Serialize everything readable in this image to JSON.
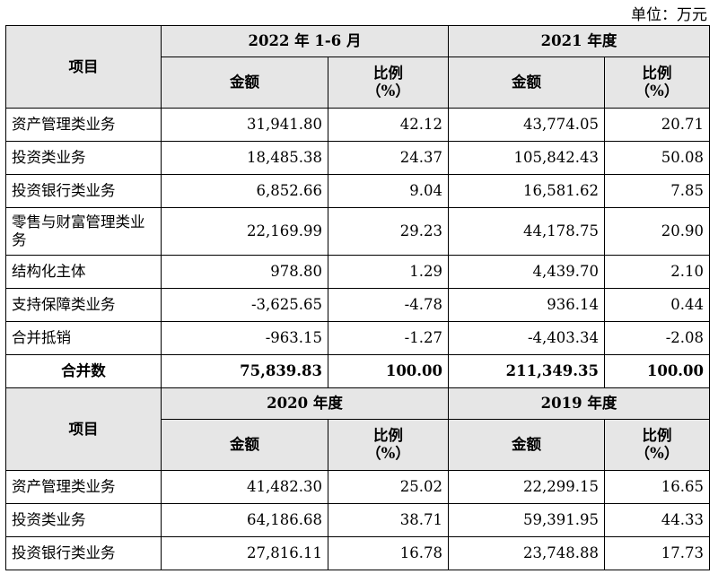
{
  "unit_label": "单位：万元",
  "tables": [
    {
      "item_header": "项目",
      "period1": "2022 年 1-6 月",
      "period2": "2021 年度",
      "amount_label": "金额",
      "ratio_label": "比例",
      "ratio_unit": "（%）",
      "rows": [
        {
          "item": "资产管理类业务",
          "a1": "31,941.80",
          "r1": "42.12",
          "a2": "43,774.05",
          "r2": "20.71"
        },
        {
          "item": "投资类业务",
          "a1": "18,485.38",
          "r1": "24.37",
          "a2": "105,842.43",
          "r2": "50.08"
        },
        {
          "item": "投资银行类业务",
          "a1": "6,852.66",
          "r1": "9.04",
          "a2": "16,581.62",
          "r2": "7.85"
        },
        {
          "item": "零售与财富管理类业务",
          "a1": "22,169.99",
          "r1": "29.23",
          "a2": "44,178.75",
          "r2": "20.90"
        },
        {
          "item": "结构化主体",
          "a1": "978.80",
          "r1": "1.29",
          "a2": "4,439.70",
          "r2": "2.10"
        },
        {
          "item": "支持保障类业务",
          "a1": "-3,625.65",
          "r1": "-4.78",
          "a2": "936.14",
          "r2": "0.44"
        },
        {
          "item": "合并抵销",
          "a1": "-963.15",
          "r1": "-1.27",
          "a2": "-4,403.34",
          "r2": "-2.08"
        },
        {
          "item": "合并数",
          "a1": "75,839.83",
          "r1": "100.00",
          "a2": "211,349.35",
          "r2": "100.00"
        }
      ]
    },
    {
      "item_header": "项目",
      "period1": "2020 年度",
      "period2": "2019 年度",
      "amount_label": "金额",
      "ratio_label": "比例",
      "ratio_unit": "（%）",
      "rows": [
        {
          "item": "资产管理类业务",
          "a1": "41,482.30",
          "r1": "25.02",
          "a2": "22,299.15",
          "r2": "16.65"
        },
        {
          "item": "投资类业务",
          "a1": "64,186.68",
          "r1": "38.71",
          "a2": "59,391.95",
          "r2": "44.33"
        },
        {
          "item": "投资银行类业务",
          "a1": "27,816.11",
          "r1": "16.78",
          "a2": "23,748.88",
          "r2": "17.73"
        }
      ]
    }
  ]
}
